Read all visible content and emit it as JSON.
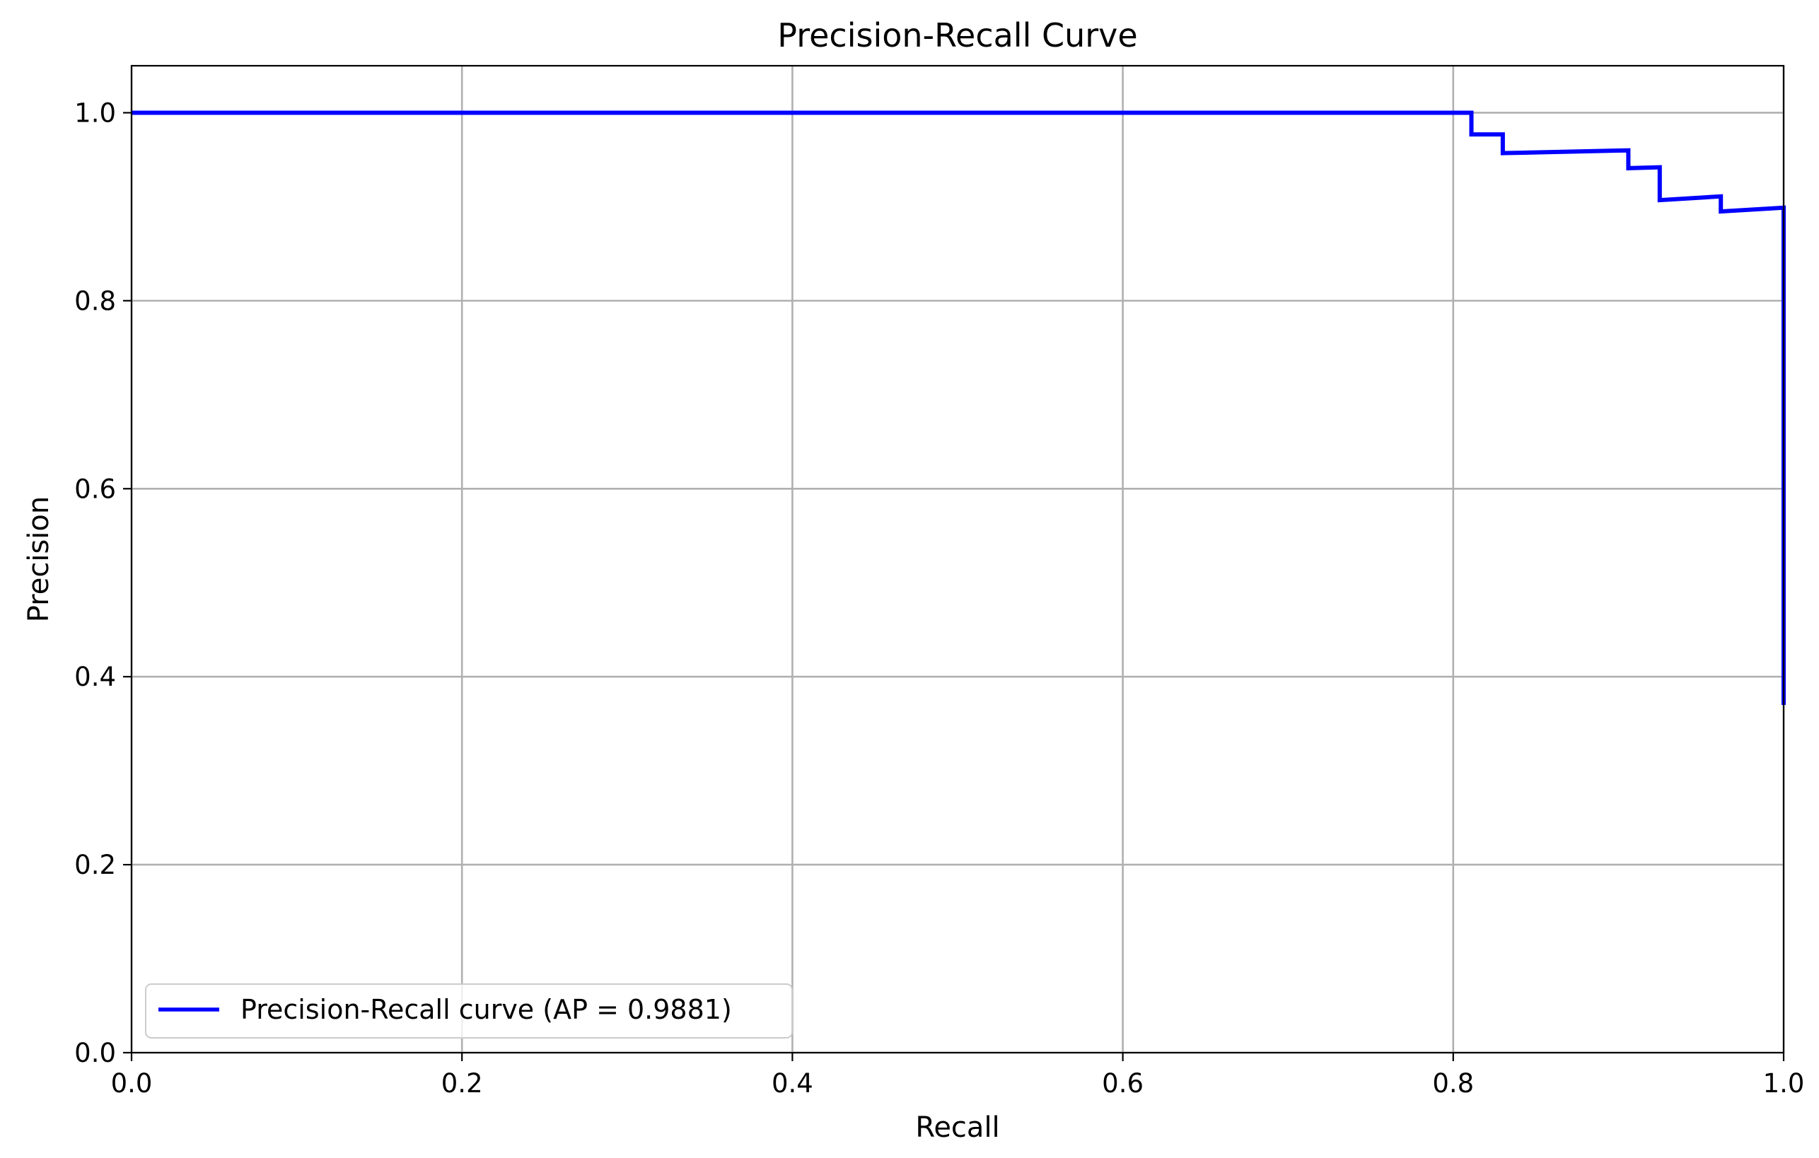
{
  "chart_data": {
    "type": "line",
    "title": "Precision-Recall Curve",
    "xlabel": "Recall",
    "ylabel": "Precision",
    "xlim": [
      0,
      1
    ],
    "ylim": [
      0,
      1.05
    ],
    "xticks": [
      0.0,
      0.2,
      0.4,
      0.6,
      0.8,
      1.0
    ],
    "yticks": [
      0.0,
      0.2,
      0.4,
      0.6,
      0.8,
      1.0
    ],
    "xtick_labels": [
      "0.0",
      "0.2",
      "0.4",
      "0.6",
      "0.8",
      "1.0"
    ],
    "ytick_labels": [
      "0.0",
      "0.2",
      "0.4",
      "0.6",
      "0.8",
      "1.0"
    ],
    "grid": true,
    "legend_position": "lower-left",
    "series": [
      {
        "name": "Precision-Recall curve (AP = 0.9881)",
        "color": "#0000ff",
        "x": [
          0.0,
          0.811,
          0.811,
          0.83,
          0.83,
          0.906,
          0.906,
          0.925,
          0.925,
          0.962,
          0.962,
          1.0,
          1.0
        ],
        "y": [
          1.0,
          1.0,
          0.977,
          0.977,
          0.957,
          0.96,
          0.941,
          0.942,
          0.907,
          0.911,
          0.895,
          0.899,
          0.37
        ]
      }
    ]
  }
}
